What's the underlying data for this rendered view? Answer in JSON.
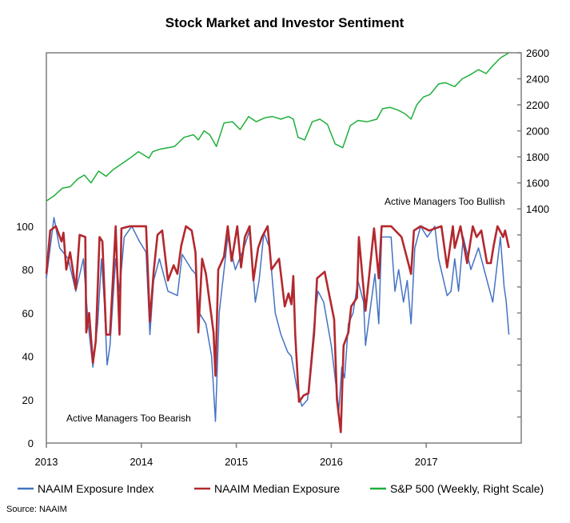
{
  "chart_data": {
    "type": "line",
    "title": "Stock Market and Investor Sentiment",
    "source": "Source:  NAAIM",
    "x_ticks": [
      "2013",
      "2014",
      "2015",
      "2016",
      "2017"
    ],
    "xlim": [
      2013,
      2018
    ],
    "left_axis": {
      "ylim": [
        0,
        180
      ],
      "ticks": [
        0,
        20,
        40,
        60,
        80,
        100
      ]
    },
    "right_axis": {
      "ylim": [
        -400,
        2600
      ],
      "ticks": [
        1400,
        1600,
        1800,
        2000,
        2200,
        2400,
        2600
      ],
      "unlabeled_ticks": [
        -200,
        0,
        200,
        400,
        600,
        800,
        1000,
        1200
      ]
    },
    "grid": false,
    "legend_placement": "bottom",
    "annotations": [
      "Active Managers Too Bullish",
      "Active Managers Too Bearish"
    ],
    "series": [
      {
        "name": "NAAIM Exposure Index",
        "axis": "left",
        "color": "#4472C4",
        "x": [
          2013.0,
          2013.08,
          2013.14,
          2013.23,
          2013.31,
          2013.39,
          2013.44,
          2013.49,
          2013.54,
          2013.58,
          2013.61,
          2013.64,
          2013.67,
          2013.73,
          2013.77,
          2013.82,
          2013.9,
          2013.98,
          2014.05,
          2014.09,
          2014.13,
          2014.19,
          2014.28,
          2014.38,
          2014.43,
          2014.53,
          2014.57,
          2014.61,
          2014.68,
          2014.74,
          2014.78,
          2014.82,
          2014.91,
          2014.99,
          2015.08,
          2015.14,
          2015.2,
          2015.24,
          2015.29,
          2015.35,
          2015.41,
          2015.47,
          2015.54,
          2015.58,
          2015.64,
          2015.69,
          2015.75,
          2015.79,
          2015.83,
          2015.86,
          2015.92,
          2016.0,
          2016.04,
          2016.08,
          2016.11,
          2016.14,
          2016.18,
          2016.23,
          2016.28,
          2016.34,
          2016.36,
          2016.42,
          2016.46,
          2016.5,
          2016.53,
          2016.63,
          2016.67,
          2016.71,
          2016.76,
          2016.8,
          2016.84,
          2016.88,
          2016.94,
          2017.01,
          2017.09,
          2017.13,
          2017.22,
          2017.26,
          2017.3,
          2017.34,
          2017.39,
          2017.47,
          2017.55,
          2017.64,
          2017.7,
          2017.78,
          2017.82,
          2017.84,
          2017.87
        ],
        "values": [
          76,
          104,
          90,
          85,
          70,
          85,
          55,
          35,
          55,
          85,
          65,
          36,
          45,
          85,
          70,
          95,
          100,
          93,
          88,
          50,
          75,
          85,
          70,
          68,
          87,
          80,
          78,
          60,
          55,
          40,
          10,
          60,
          95,
          80,
          90,
          98,
          65,
          75,
          97,
          90,
          60,
          50,
          42,
          40,
          25,
          17,
          20,
          40,
          60,
          70,
          65,
          45,
          30,
          15,
          35,
          30,
          55,
          60,
          75,
          65,
          45,
          65,
          78,
          55,
          95,
          95,
          70,
          80,
          65,
          75,
          55,
          90,
          100,
          95,
          100,
          85,
          68,
          70,
          85,
          70,
          95,
          80,
          90,
          75,
          65,
          95,
          72,
          66,
          50
        ]
      },
      {
        "name": "NAAIM Median Exposure",
        "axis": "left",
        "color": "#B3282D",
        "x": [
          2013.0,
          2013.04,
          2013.1,
          2013.16,
          2013.18,
          2013.21,
          2013.25,
          2013.31,
          2013.35,
          2013.41,
          2013.42,
          2013.45,
          2013.49,
          2013.52,
          2013.56,
          2013.59,
          2013.63,
          2013.67,
          2013.73,
          2013.77,
          2013.79,
          2013.88,
          2014.05,
          2014.09,
          2014.13,
          2014.17,
          2014.22,
          2014.28,
          2014.34,
          2014.38,
          2014.42,
          2014.47,
          2014.53,
          2014.57,
          2014.6,
          2014.64,
          2014.68,
          2014.76,
          2014.78,
          2014.81,
          2014.87,
          2014.91,
          2014.95,
          2015.01,
          2015.05,
          2015.09,
          2015.14,
          2015.18,
          2015.23,
          2015.27,
          2015.33,
          2015.37,
          2015.45,
          2015.51,
          2015.55,
          2015.58,
          2015.6,
          2015.62,
          2015.66,
          2015.71,
          2015.76,
          2015.82,
          2015.85,
          2015.93,
          2016.03,
          2016.06,
          2016.1,
          2016.13,
          2016.18,
          2016.21,
          2016.27,
          2016.29,
          2016.36,
          2016.45,
          2016.5,
          2016.53,
          2016.63,
          2016.74,
          2016.84,
          2016.87,
          2016.94,
          2017.03,
          2017.16,
          2017.22,
          2017.28,
          2017.3,
          2017.36,
          2017.43,
          2017.49,
          2017.53,
          2017.58,
          2017.64,
          2017.68,
          2017.71,
          2017.75,
          2017.81,
          2017.83,
          2017.87
        ],
        "values": [
          78,
          98,
          100,
          93,
          97,
          80,
          88,
          71,
          96,
          95,
          51,
          60,
          37,
          47,
          95,
          93,
          50,
          50,
          100,
          50,
          99,
          100,
          100,
          56,
          79,
          96,
          98,
          75,
          82,
          78,
          91,
          100,
          98,
          88,
          51,
          85,
          78,
          51,
          31,
          80,
          86,
          100,
          84,
          100,
          81,
          95,
          100,
          75,
          90,
          95,
          100,
          80,
          85,
          63,
          69,
          64,
          77,
          50,
          19,
          22,
          23,
          51,
          76,
          79,
          57,
          20,
          5,
          45,
          51,
          63,
          67,
          95,
          61,
          99,
          76,
          100,
          100,
          95,
          78,
          98,
          100,
          98,
          100,
          81,
          100,
          90,
          100,
          83,
          100,
          95,
          98,
          83,
          83,
          91,
          100,
          95,
          98,
          90
        ]
      },
      {
        "name": "S&P 500 (Weekly, Right Scale)",
        "axis": "right",
        "color": "#1FAF3A",
        "x": [
          2013.0,
          2013.08,
          2013.17,
          2013.25,
          2013.33,
          2013.4,
          2013.47,
          2013.55,
          2013.63,
          2013.7,
          2013.78,
          2013.88,
          2013.97,
          2014.08,
          2014.12,
          2014.2,
          2014.28,
          2014.35,
          2014.45,
          2014.55,
          2014.6,
          2014.66,
          2014.72,
          2014.79,
          2014.87,
          2014.96,
          2015.04,
          2015.13,
          2015.21,
          2015.3,
          2015.38,
          2015.47,
          2015.55,
          2015.6,
          2015.65,
          2015.72,
          2015.8,
          2015.88,
          2015.96,
          2016.04,
          2016.12,
          2016.2,
          2016.28,
          2016.38,
          2016.48,
          2016.54,
          2016.62,
          2016.7,
          2016.78,
          2016.84,
          2016.9,
          2016.97,
          2017.04,
          2017.13,
          2017.2,
          2017.3,
          2017.38,
          2017.46,
          2017.55,
          2017.63,
          2017.7,
          2017.78,
          2017.87
        ],
        "values": [
          1460,
          1500,
          1560,
          1570,
          1630,
          1660,
          1600,
          1690,
          1650,
          1700,
          1740,
          1790,
          1840,
          1790,
          1840,
          1860,
          1870,
          1880,
          1950,
          1970,
          1930,
          2000,
          1970,
          1880,
          2060,
          2070,
          2010,
          2110,
          2070,
          2100,
          2110,
          2090,
          2110,
          2090,
          1950,
          1930,
          2070,
          2090,
          2050,
          1900,
          1870,
          2040,
          2080,
          2070,
          2090,
          2170,
          2180,
          2160,
          2130,
          2090,
          2200,
          2260,
          2280,
          2360,
          2370,
          2340,
          2400,
          2430,
          2470,
          2440,
          2500,
          2560,
          2600
        ]
      }
    ]
  }
}
